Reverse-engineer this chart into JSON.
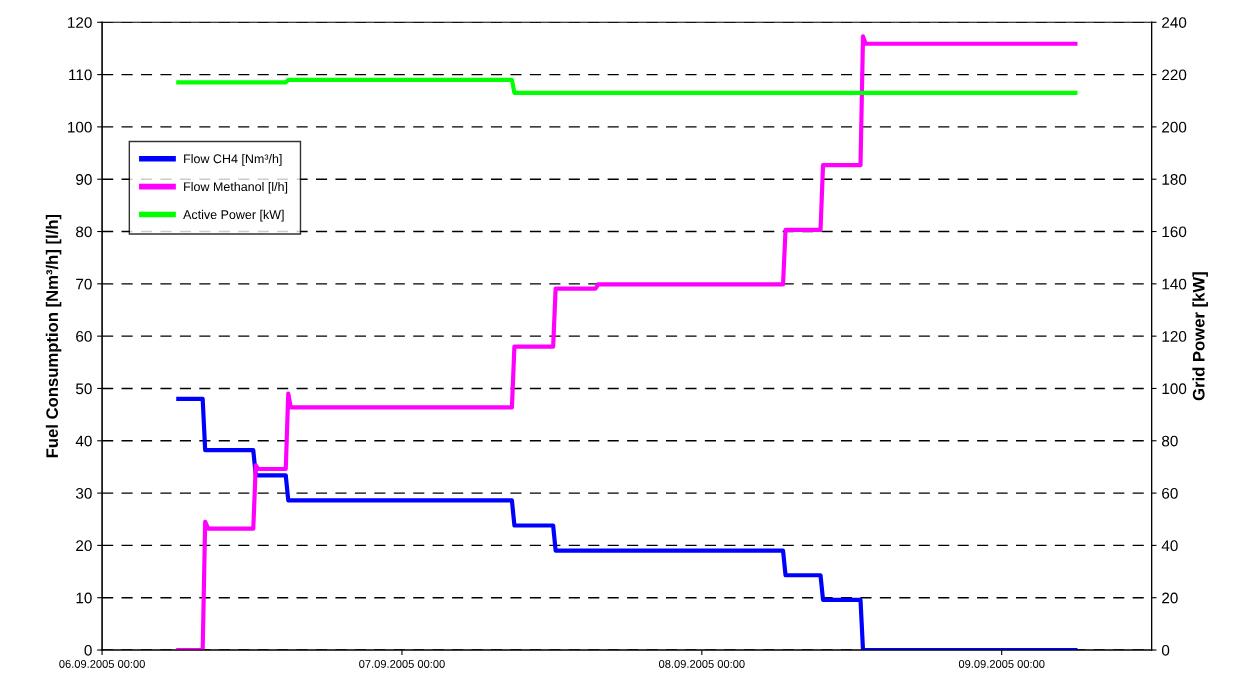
{
  "chart_data": {
    "type": "line",
    "xlabel": null,
    "ylabel": "Fuel Consumption [Nm³/h] [l/h]",
    "y2label": "Grid Power [kW]",
    "xlim": [
      "2005-09-06T00:00",
      "2005-09-09T12:00"
    ],
    "xticks": [
      {
        "value": "2005-09-06T00:00",
        "label": "06.09.2005 00:00"
      },
      {
        "value": "2005-09-07T00:00",
        "label": "07.09.2005 00:00"
      },
      {
        "value": "2005-09-08T00:00",
        "label": "08.09.2005 00:00"
      },
      {
        "value": "2005-09-09T00:00",
        "label": "09.09.2005 00:00"
      }
    ],
    "ylim": [
      0,
      120
    ],
    "yticks": [
      0,
      10,
      20,
      30,
      40,
      50,
      60,
      70,
      80,
      90,
      100,
      110,
      120
    ],
    "y2lim": [
      0,
      240
    ],
    "y2ticks": [
      0,
      20,
      40,
      60,
      80,
      100,
      120,
      140,
      160,
      180,
      200,
      220,
      240
    ],
    "grid": "y",
    "legend": "top left",
    "line_style": "solid",
    "series": [
      {
        "name": "Flow CH4 [Nm³/h]",
        "color": "#0000ff",
        "x": [
          "2005-09-06T06:06",
          "2005-09-06T08:03",
          "2005-09-06T08:15",
          "2005-09-06T12:06",
          "2005-09-06T12:18",
          "2005-09-06T14:42",
          "2005-09-06T14:54",
          "2005-09-07T08:48",
          "2005-09-07T09:00",
          "2005-09-07T12:06",
          "2005-09-07T12:18",
          "2005-09-08T06:30",
          "2005-09-08T06:42",
          "2005-09-08T09:30",
          "2005-09-08T09:42",
          "2005-09-08T12:42",
          "2005-09-08T12:54",
          "2005-09-09T05:54"
        ],
        "values": [
          48,
          48,
          38.2,
          38.2,
          33.4,
          33.4,
          28.6,
          28.6,
          23.8,
          23.8,
          19,
          19,
          14.3,
          14.3,
          9.6,
          9.6,
          0,
          0
        ]
      },
      {
        "name": "Flow Methanol [l/h]",
        "color": "#ff00ff",
        "x": [
          "2005-09-06T06:06",
          "2005-09-06T08:03",
          "2005-09-06T08:15",
          "2005-09-06T08:30",
          "2005-09-06T12:06",
          "2005-09-06T12:18",
          "2005-09-06T12:30",
          "2005-09-06T14:42",
          "2005-09-06T14:54",
          "2005-09-06T15:06",
          "2005-09-07T08:48",
          "2005-09-07T09:00",
          "2005-09-07T12:06",
          "2005-09-07T12:18",
          "2005-09-07T15:30",
          "2005-09-07T15:42",
          "2005-09-08T06:30",
          "2005-09-08T06:42",
          "2005-09-08T09:30",
          "2005-09-08T09:42",
          "2005-09-08T12:42",
          "2005-09-08T12:54",
          "2005-09-08T13:06",
          "2005-09-09T05:54"
        ],
        "values": [
          0,
          0,
          24.5,
          23.2,
          23.2,
          35.3,
          34.6,
          34.6,
          49,
          46.4,
          46.4,
          58,
          58,
          69.1,
          69.1,
          69.9,
          69.9,
          80.3,
          80.3,
          92.7,
          92.7,
          117.3,
          115.9,
          115.9
        ]
      },
      {
        "name": "Active Power [kW]",
        "color": "#00ff00",
        "axis": "y2",
        "x": [
          "2005-09-06T06:06",
          "2005-09-06T14:42",
          "2005-09-06T14:54",
          "2005-09-07T08:48",
          "2005-09-07T09:00",
          "2005-09-09T05:54"
        ],
        "values": [
          217,
          217,
          218,
          218,
          213,
          213
        ]
      }
    ]
  }
}
